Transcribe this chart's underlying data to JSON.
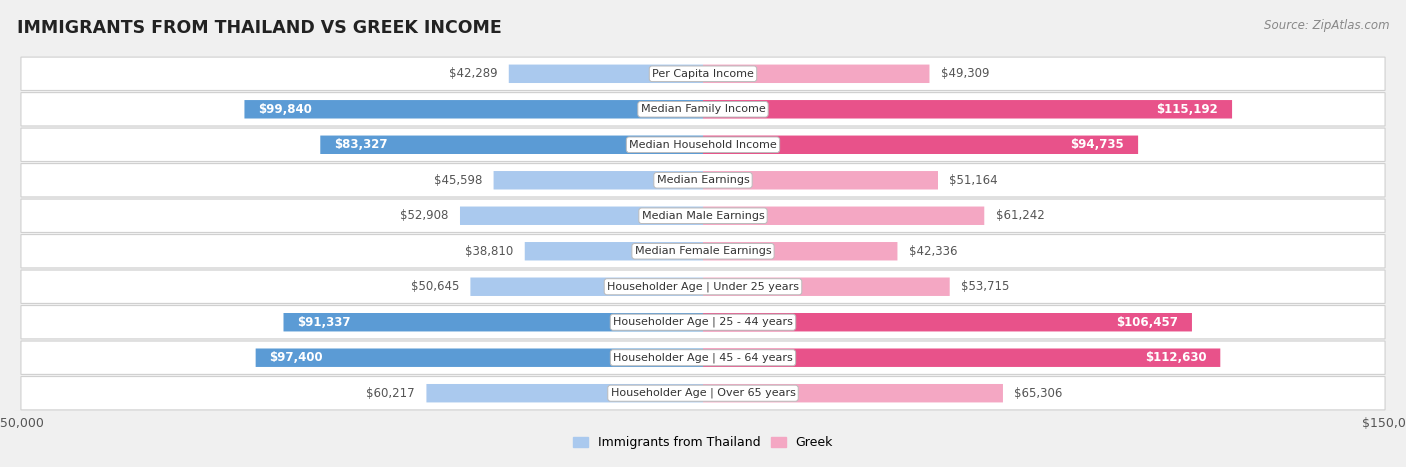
{
  "title": "IMMIGRANTS FROM THAILAND VS GREEK INCOME",
  "source": "Source: ZipAtlas.com",
  "categories": [
    "Per Capita Income",
    "Median Family Income",
    "Median Household Income",
    "Median Earnings",
    "Median Male Earnings",
    "Median Female Earnings",
    "Householder Age | Under 25 years",
    "Householder Age | 25 - 44 years",
    "Householder Age | 45 - 64 years",
    "Householder Age | Over 65 years"
  ],
  "thailand_values": [
    42289,
    99840,
    83327,
    45598,
    52908,
    38810,
    50645,
    91337,
    97400,
    60217
  ],
  "greek_values": [
    49309,
    115192,
    94735,
    51164,
    61242,
    42336,
    53715,
    106457,
    112630,
    65306
  ],
  "thailand_labels": [
    "$42,289",
    "$99,840",
    "$83,327",
    "$45,598",
    "$52,908",
    "$38,810",
    "$50,645",
    "$91,337",
    "$97,400",
    "$60,217"
  ],
  "greek_labels": [
    "$49,309",
    "$115,192",
    "$94,735",
    "$51,164",
    "$61,242",
    "$42,336",
    "$53,715",
    "$106,457",
    "$112,630",
    "$65,306"
  ],
  "thailand_color_light": "#aac9ee",
  "thailand_color_dark": "#5b9bd5",
  "greek_color_light": "#f4a7c3",
  "greek_color_dark": "#e8528a",
  "max_value": 150000,
  "bar_height": 0.52,
  "large_threshold": 70000,
  "background_color": "#f0f0f0",
  "row_color": "#ffffff",
  "legend_thailand": "Immigrants from Thailand",
  "legend_greek": "Greek",
  "label_fontsize": 8.5,
  "cat_fontsize": 8.0
}
